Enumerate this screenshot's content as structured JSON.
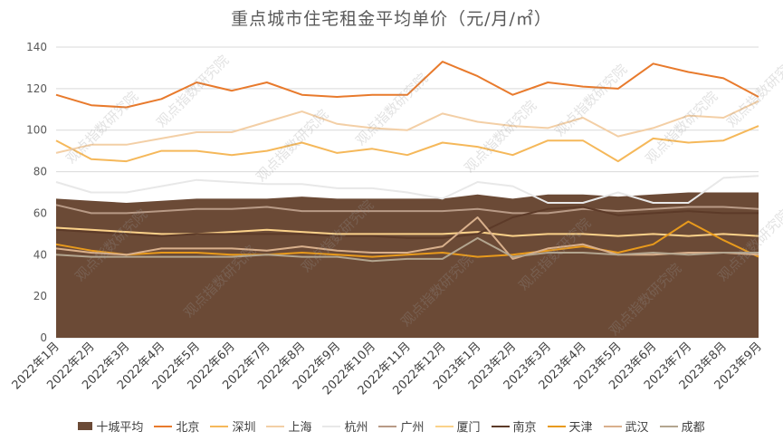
{
  "chart_data": {
    "type": "line",
    "title": "重点城市住宅租金平均单价（元/月/㎡）",
    "categories": [
      "2022年1月",
      "2022年2月",
      "2022年3月",
      "2022年4月",
      "2022年5月",
      "2022年6月",
      "2022年7月",
      "2022年8月",
      "2022年9月",
      "2022年10月",
      "2022年11月",
      "2022年12月",
      "2023年1月",
      "2023年2月",
      "2023年3月",
      "2023年4月",
      "2023年5月",
      "2023年6月",
      "2023年7月",
      "2023年8月",
      "2023年9月"
    ],
    "ylim": [
      0,
      140
    ],
    "yticks": [
      0,
      20,
      40,
      60,
      80,
      100,
      120,
      140
    ],
    "grid": true,
    "legend_position": "bottom",
    "series": [
      {
        "name": "十城平均",
        "kind": "area",
        "color": "#6b4a36",
        "values": [
          67,
          66,
          65,
          66,
          67,
          67,
          67,
          68,
          67,
          67,
          67,
          67,
          69,
          67,
          69,
          69,
          68,
          69,
          70,
          70,
          70
        ]
      },
      {
        "name": "北京",
        "kind": "line",
        "color": "#e87a2c",
        "values": [
          117,
          112,
          111,
          115,
          123,
          119,
          123,
          117,
          116,
          117,
          117,
          133,
          126,
          117,
          123,
          121,
          120,
          132,
          128,
          125,
          116
        ]
      },
      {
        "name": "深圳",
        "kind": "line",
        "color": "#f5b85a",
        "values": [
          95,
          86,
          85,
          90,
          90,
          88,
          90,
          94,
          89,
          91,
          88,
          94,
          92,
          88,
          95,
          95,
          85,
          96,
          94,
          95,
          102
        ]
      },
      {
        "name": "上海",
        "kind": "line",
        "color": "#f3cfa6",
        "values": [
          89,
          93,
          93,
          96,
          99,
          99,
          104,
          109,
          103,
          101,
          100,
          108,
          104,
          102,
          101,
          106,
          97,
          101,
          107,
          106,
          114
        ]
      },
      {
        "name": "杭州",
        "kind": "line",
        "color": "#e8e8e8",
        "values": [
          75,
          70,
          70,
          73,
          76,
          75,
          74,
          74,
          72,
          72,
          70,
          67,
          75,
          73,
          65,
          65,
          70,
          65,
          65,
          77,
          78
        ]
      },
      {
        "name": "广州",
        "kind": "line",
        "color": "#b89a86",
        "values": [
          64,
          60,
          60,
          61,
          62,
          62,
          63,
          61,
          61,
          61,
          61,
          61,
          62,
          60,
          60,
          62,
          61,
          62,
          63,
          63,
          62
        ]
      },
      {
        "name": "厦门",
        "kind": "line",
        "color": "#fbd28a",
        "values": [
          53,
          52,
          51,
          50,
          50,
          51,
          52,
          51,
          50,
          50,
          50,
          50,
          51,
          49,
          50,
          50,
          49,
          50,
          49,
          50,
          49
        ]
      },
      {
        "name": "南京",
        "kind": "line",
        "color": "#5c3a28",
        "values": [
          52,
          51,
          50,
          49,
          50,
          50,
          50,
          50,
          49,
          49,
          48,
          48,
          50,
          58,
          62,
          63,
          59,
          60,
          61,
          60,
          60
        ]
      },
      {
        "name": "天津",
        "kind": "line",
        "color": "#e89a1c",
        "values": [
          45,
          42,
          40,
          41,
          41,
          40,
          40,
          41,
          40,
          39,
          40,
          41,
          39,
          40,
          42,
          44,
          41,
          45,
          56,
          47,
          39
        ]
      },
      {
        "name": "武汉",
        "kind": "line",
        "color": "#d9b08c",
        "values": [
          43,
          41,
          40,
          43,
          43,
          43,
          42,
          44,
          42,
          41,
          41,
          44,
          58,
          38,
          43,
          45,
          40,
          40,
          41,
          41,
          40
        ]
      },
      {
        "name": "成都",
        "kind": "line",
        "color": "#b3a58f",
        "values": [
          40,
          39,
          39,
          39,
          39,
          39,
          40,
          39,
          39,
          37,
          38,
          38,
          48,
          39,
          41,
          41,
          40,
          41,
          40,
          41,
          41
        ]
      }
    ]
  },
  "watermark_text": "观点指数研究院"
}
